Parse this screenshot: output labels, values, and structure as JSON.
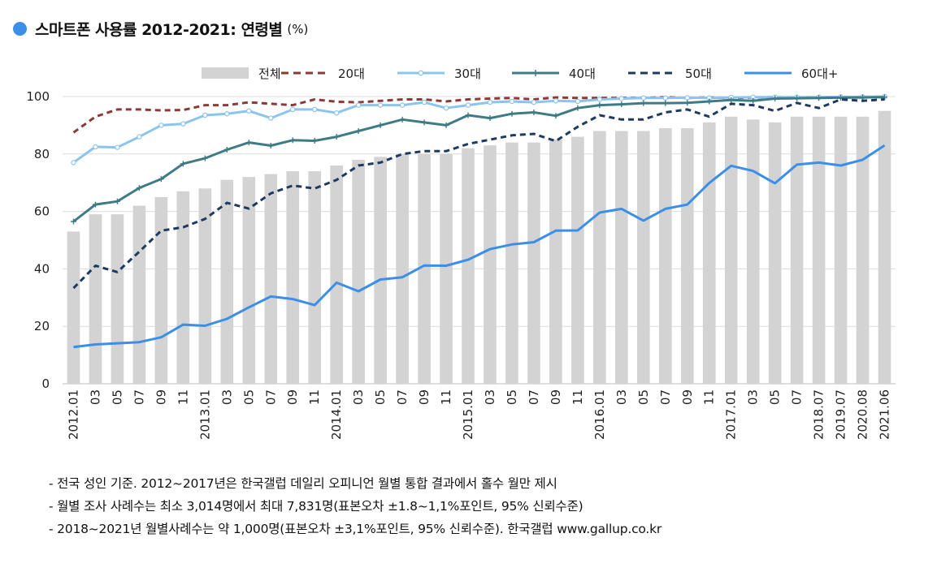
{
  "header": {
    "title": "스마트폰 사용률 2012-2021: 연령별",
    "unit": "(%)",
    "dot_color": "#3b8fe8"
  },
  "notes": [
    "- 전국 성인 기준. 2012~2017년은 한국갤럽 데일리 오피니언 월별 통합 결과에서 홀수 월만 제시",
    "- 월별 조사 사례수는 최소 3,014명에서 최대 7,831명(표본오차 ±1.8~1,1%포인트, 95% 신뢰수준)",
    "- 2018~2021년 월별사례수는 약 1,000명(표본오차 ±3,1%포인트, 95% 신뢰수준). 한국갤럽 www.gallup.co.kr"
  ],
  "chart_data": {
    "type": "bar+line",
    "title": "스마트폰 사용률 2012-2021: 연령별",
    "xlabel": "",
    "ylabel": "(%)",
    "ylim": [
      0,
      100
    ],
    "yticks": [
      "0",
      "20",
      "40",
      "60",
      "80",
      "100"
    ],
    "grid": true,
    "legend_position": "top",
    "categories": [
      "2012.01",
      "03",
      "05",
      "07",
      "09",
      "11",
      "2013.01",
      "03",
      "05",
      "07",
      "09",
      "11",
      "2014.01",
      "03",
      "05",
      "07",
      "09",
      "11",
      "2015.01",
      "03",
      "05",
      "07",
      "09",
      "11",
      "2016.01",
      "03",
      "05",
      "07",
      "09",
      "11",
      "2017.01",
      "03",
      "05",
      "07",
      "2018.07",
      "2019.07",
      "2020.08",
      "2021.06"
    ],
    "bar_series": {
      "name": "전체",
      "color": "#d3d3d3",
      "values": [
        53,
        59,
        59,
        62,
        65,
        67,
        68,
        71,
        72,
        73,
        74,
        74,
        76,
        78,
        79,
        80,
        80,
        80,
        82,
        83,
        84,
        84,
        85,
        86,
        88,
        88,
        88,
        89,
        89,
        91,
        93,
        92,
        91,
        93,
        93,
        93,
        93,
        95
      ]
    },
    "series": [
      {
        "name": "20대",
        "color": "#8b3a36",
        "style": "dashed",
        "values": [
          87.5,
          93,
          95.5,
          95.5,
          95.2,
          95.3,
          97,
          97,
          98,
          97.5,
          97,
          99,
          98.2,
          98,
          98.5,
          99,
          99,
          98.3,
          99,
          99.3,
          99.5,
          99,
          99.7,
          99.5,
          99.5,
          99.5,
          99.5,
          99.8,
          99.5,
          99.7,
          99.5,
          99.7,
          99.8,
          99.7,
          99.8,
          99.8,
          99.9,
          99.9
        ]
      },
      {
        "name": "30대",
        "color": "#8cc4f0",
        "style": "solid-circle",
        "values": [
          77,
          82.5,
          82.3,
          86,
          90,
          90.5,
          93.5,
          94,
          95,
          92.5,
          95.5,
          95.5,
          94.3,
          97,
          97,
          97,
          98,
          96,
          97,
          98,
          98.3,
          98,
          98.5,
          98.3,
          99,
          99.3,
          99.5,
          99.5,
          99.6,
          99.5,
          99.7,
          99.8,
          99.8,
          99.8,
          99.8,
          99.9,
          99.9,
          100
        ]
      },
      {
        "name": "40대",
        "color": "#3f7b86",
        "style": "solid-plus",
        "values": [
          56.5,
          62.4,
          63.5,
          68.2,
          71.3,
          76.6,
          78.5,
          81.5,
          84,
          82.9,
          84.8,
          84.6,
          86,
          88,
          90,
          92,
          91,
          90,
          93.5,
          92.5,
          94,
          94.5,
          93.3,
          96,
          97,
          97.3,
          97.7,
          97.7,
          97.8,
          98.3,
          98.8,
          98.5,
          99.3,
          99.4,
          99.5,
          99.6,
          99.7,
          99.8
        ]
      },
      {
        "name": "50대",
        "color": "#1f3a5f",
        "style": "dashed",
        "values": [
          33.3,
          41.1,
          38.9,
          46,
          53.3,
          54.5,
          57.4,
          63,
          61,
          66.3,
          69,
          68,
          71,
          76,
          77,
          80,
          81,
          81,
          83.5,
          85,
          86.5,
          87,
          84.5,
          89.5,
          93.5,
          92,
          92,
          94.5,
          95.5,
          93,
          97.5,
          97,
          95,
          97.8,
          96,
          99,
          98.5,
          99
        ]
      },
      {
        "name": "60대+",
        "color": "#3b8fe8",
        "style": "solid",
        "values": [
          12.8,
          13.7,
          14.1,
          14.5,
          16.2,
          20.6,
          20.2,
          22.6,
          26.6,
          30.4,
          29.5,
          27.4,
          35.2,
          32.2,
          36.3,
          37.1,
          41.2,
          41.1,
          43.2,
          46.9,
          48.5,
          49.3,
          53.3,
          53.4,
          59.6,
          60.9,
          56.8,
          60.9,
          62.4,
          69.9,
          75.9,
          74.1,
          69.8,
          76.3,
          77.0,
          76.0,
          78.0,
          83.0
        ]
      }
    ]
  }
}
